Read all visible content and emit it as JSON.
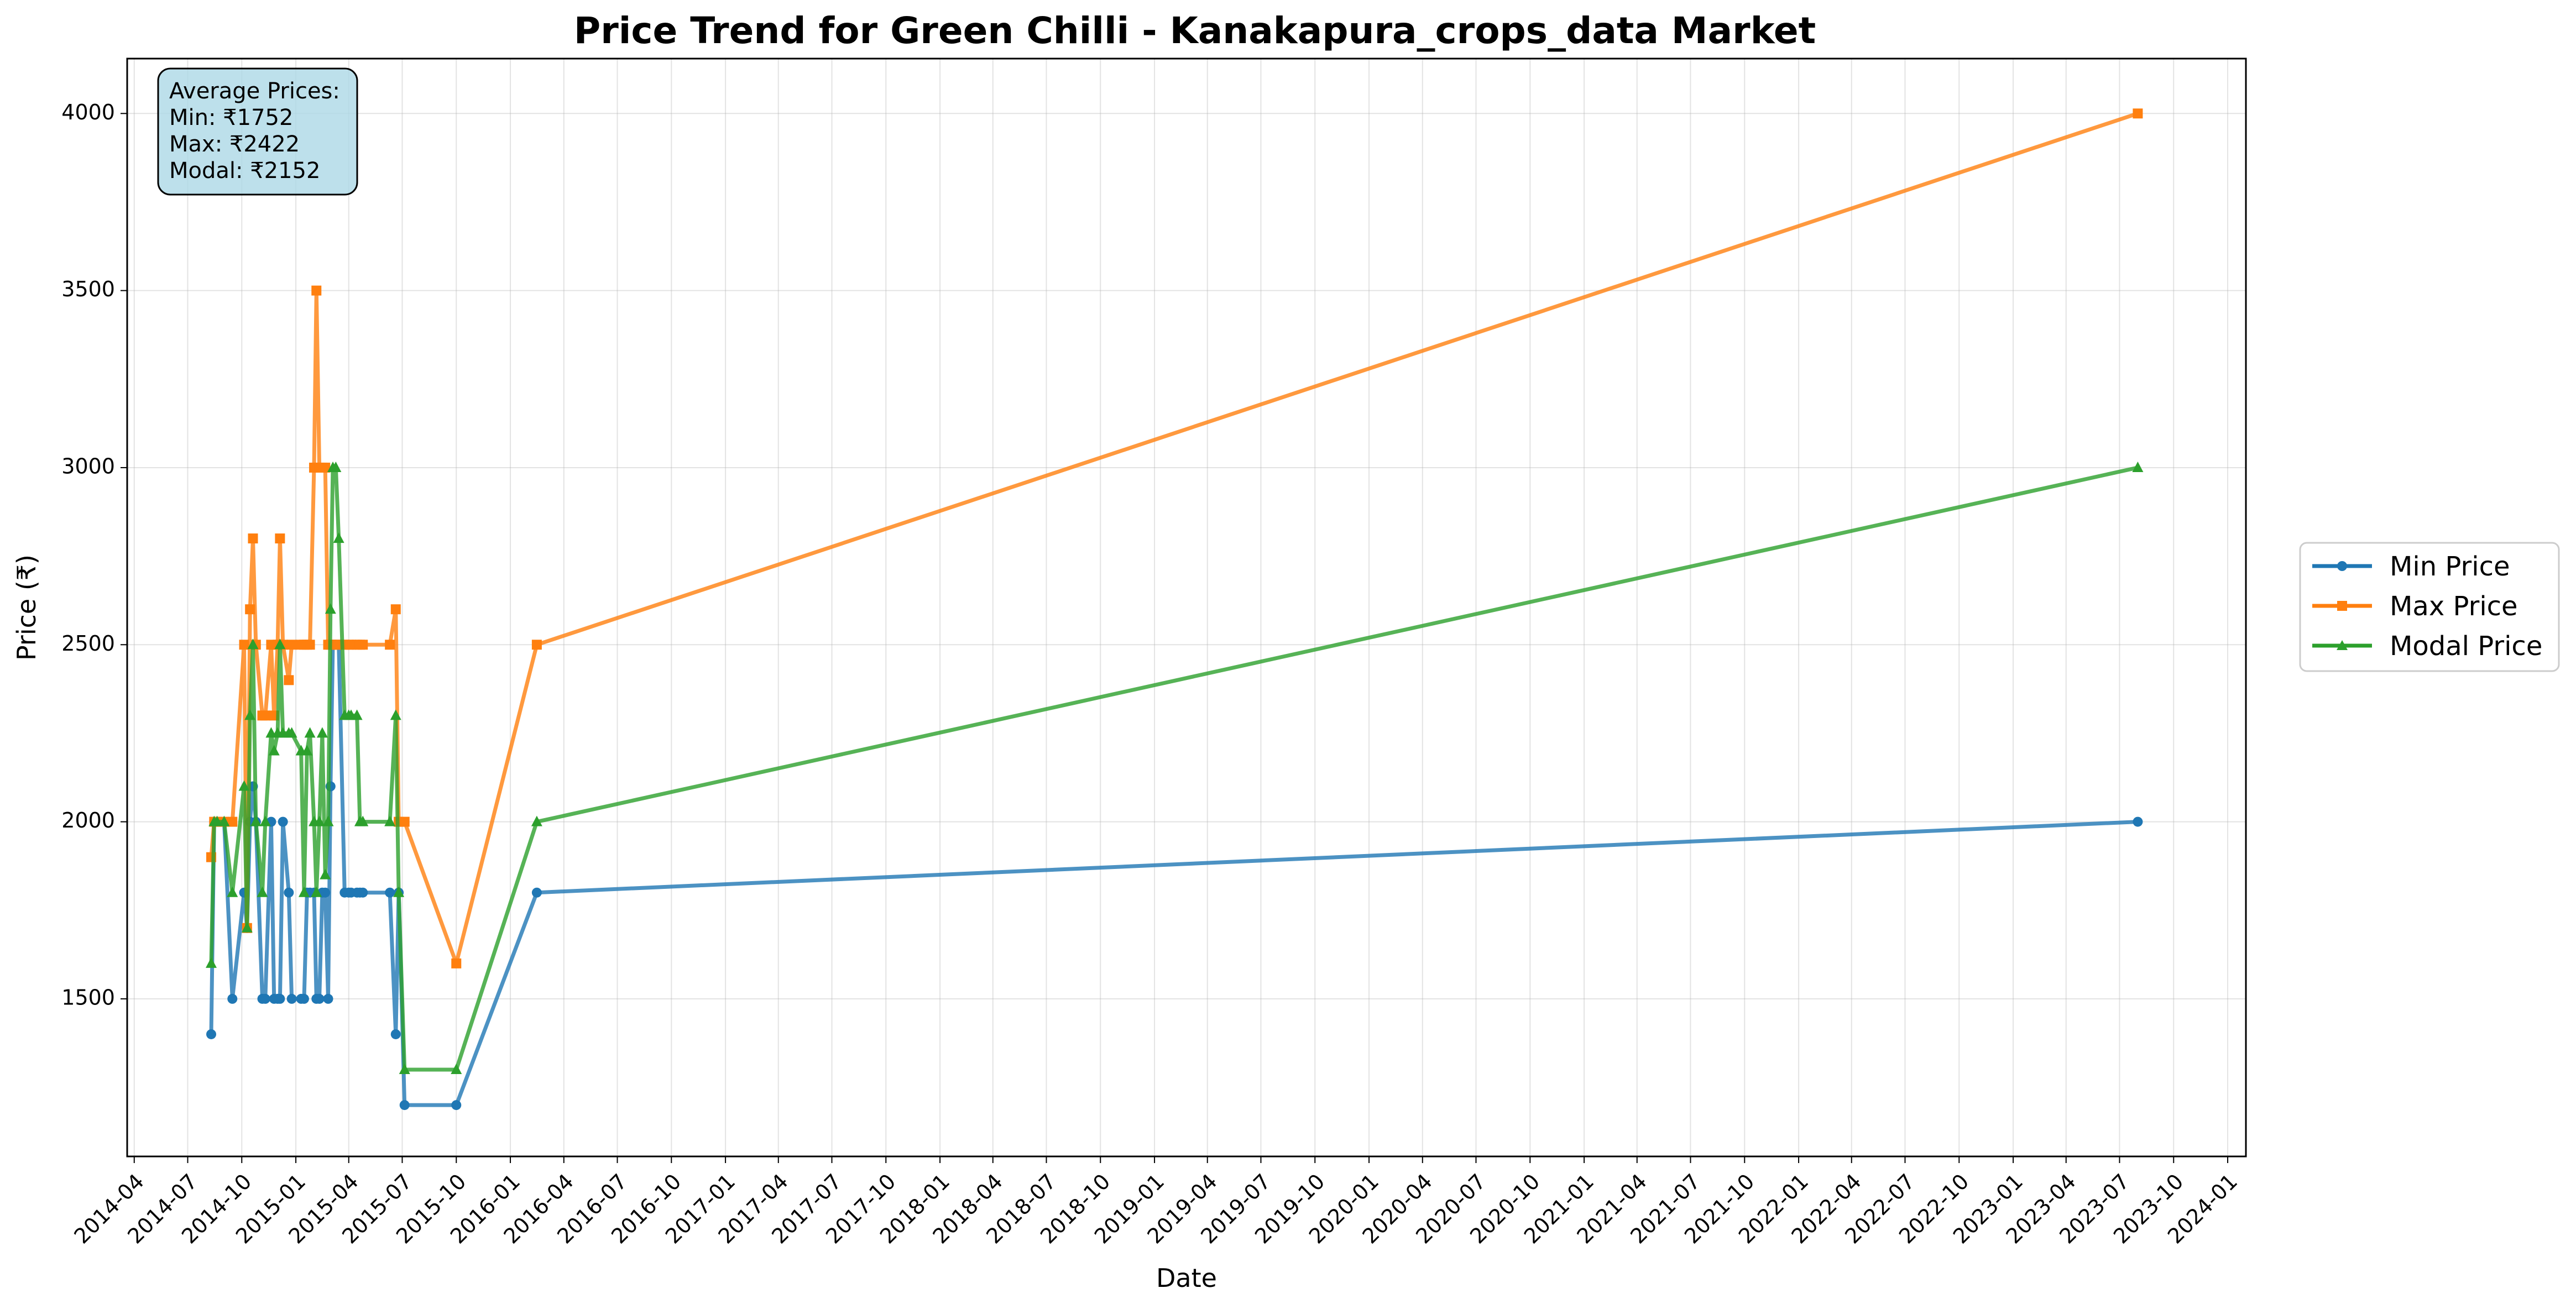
{
  "chart_data": {
    "type": "line",
    "title": "Price Trend for Green Chilli - Kanakapura_crops_data Market",
    "xlabel": "Date",
    "ylabel": "Price (₹)",
    "xlim": [
      "2014-03-20",
      "2024-02-01"
    ],
    "ylim": [
      1055,
      4155
    ],
    "grid": true,
    "legend_position": "center-right",
    "x_tick_labels": [
      "2014-04",
      "2014-07",
      "2014-10",
      "2015-01",
      "2015-04",
      "2015-07",
      "2015-10",
      "2016-01",
      "2016-04",
      "2016-07",
      "2016-10",
      "2017-01",
      "2017-04",
      "2017-07",
      "2017-10",
      "2018-01",
      "2018-04",
      "2018-07",
      "2018-10",
      "2019-01",
      "2019-04",
      "2019-07",
      "2019-10",
      "2020-01",
      "2020-04",
      "2020-07",
      "2020-10",
      "2021-01",
      "2021-04",
      "2021-07",
      "2021-10",
      "2022-01",
      "2022-04",
      "2022-07",
      "2022-10",
      "2023-01",
      "2023-04",
      "2023-07",
      "2023-10",
      "2024-01"
    ],
    "y_tick_labels": [
      "1500",
      "2000",
      "2500",
      "3000",
      "3500",
      "4000"
    ],
    "stats_box": {
      "heading": "Average Prices:",
      "min": "Min: ₹1752",
      "max": "Max: ₹2422",
      "modal": "Modal: ₹2152"
    },
    "x": [
      "2014-08-10",
      "2014-08-15",
      "2014-08-20",
      "2014-09-01",
      "2014-09-15",
      "2014-10-05",
      "2014-10-10",
      "2014-10-15",
      "2014-10-20",
      "2014-10-25",
      "2014-11-05",
      "2014-11-10",
      "2014-11-20",
      "2014-11-25",
      "2014-12-01",
      "2014-12-05",
      "2014-12-10",
      "2014-12-20",
      "2014-12-25",
      "2015-01-10",
      "2015-01-15",
      "2015-01-20",
      "2015-01-25",
      "2015-02-01",
      "2015-02-05",
      "2015-02-10",
      "2015-02-15",
      "2015-02-20",
      "2015-02-25",
      "2015-03-01",
      "2015-03-05",
      "2015-03-10",
      "2015-03-15",
      "2015-03-25",
      "2015-04-01",
      "2015-04-05",
      "2015-04-15",
      "2015-04-20",
      "2015-04-25",
      "2015-06-10",
      "2015-06-20",
      "2015-06-25",
      "2015-07-05",
      "2015-10-01",
      "2016-02-15",
      "2023-08-01"
    ],
    "series": [
      {
        "name": "Min Price",
        "color": "#1f77b4",
        "marker": "circle",
        "values": [
          1400,
          2000,
          2000,
          2000,
          1500,
          1800,
          1700,
          2000,
          2100,
          2000,
          1500,
          1500,
          2000,
          1500,
          1500,
          1500,
          2000,
          1800,
          1500,
          1500,
          1500,
          1800,
          1800,
          1800,
          1500,
          1500,
          1800,
          1800,
          1500,
          2100,
          2500,
          2500,
          2500,
          1800,
          1800,
          1800,
          1800,
          1800,
          1800,
          1800,
          1400,
          1800,
          1200,
          1200,
          1800,
          2000
        ]
      },
      {
        "name": "Max Price",
        "color": "#ff7f0e",
        "marker": "square",
        "values": [
          1900,
          2000,
          2000,
          2000,
          2000,
          2500,
          1700,
          2600,
          2800,
          2500,
          2300,
          2300,
          2500,
          2300,
          2500,
          2800,
          2500,
          2400,
          2500,
          2500,
          2500,
          2500,
          2500,
          3000,
          3500,
          3000,
          3000,
          3000,
          2500,
          2500,
          2500,
          2500,
          2500,
          2500,
          2500,
          2500,
          2500,
          2500,
          2500,
          2500,
          2600,
          2000,
          2000,
          1600,
          2500,
          4000
        ]
      },
      {
        "name": "Modal Price",
        "color": "#2ca02c",
        "marker": "triangle",
        "values": [
          1600,
          2000,
          2000,
          2000,
          1800,
          2100,
          1700,
          2300,
          2500,
          2000,
          1800,
          2000,
          2250,
          2200,
          2250,
          2500,
          2250,
          2250,
          2250,
          2200,
          1800,
          2200,
          2250,
          2000,
          1800,
          2000,
          2250,
          1850,
          2000,
          2600,
          3000,
          3000,
          2800,
          2300,
          2300,
          2300,
          2300,
          2000,
          2000,
          2000,
          2300,
          1800,
          1300,
          1300,
          2000,
          3000
        ]
      }
    ]
  }
}
